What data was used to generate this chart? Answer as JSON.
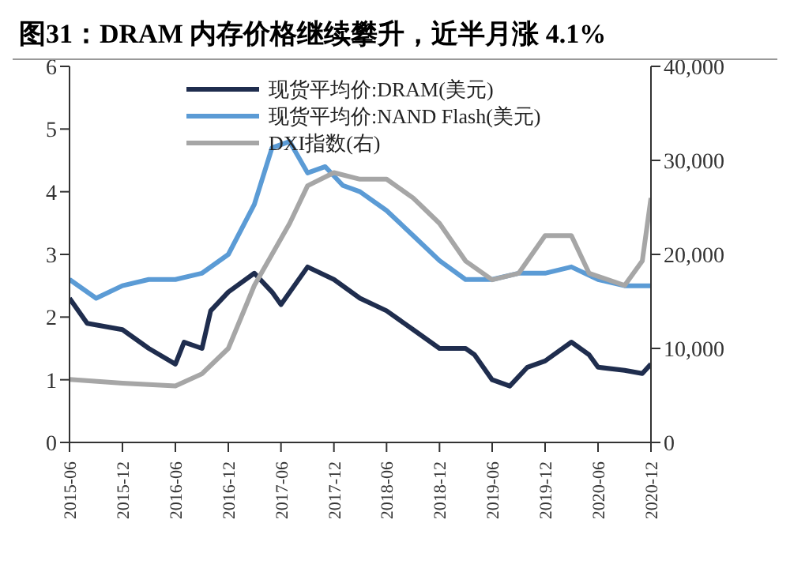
{
  "chart_data": {
    "type": "line",
    "title": "图31：DRAM 内存价格继续攀升，近半月涨 4.1%",
    "xlim": [
      "2015-06",
      "2020-12"
    ],
    "xticks": [
      "2015-06",
      "2015-12",
      "2016-06",
      "2016-12",
      "2017-06",
      "2017-12",
      "2018-06",
      "2018-12",
      "2019-06",
      "2019-12",
      "2020-06",
      "2020-12"
    ],
    "ylim": [
      0,
      6
    ],
    "yticks": [
      0,
      1,
      2,
      3,
      4,
      5,
      6
    ],
    "y2lim": [
      0,
      40000
    ],
    "y2ticks": [
      {
        "value": 0,
        "label": "0"
      },
      {
        "value": 10000,
        "label": "10,000"
      },
      {
        "value": 20000,
        "label": "20,000"
      },
      {
        "value": 30000,
        "label": "30,000"
      },
      {
        "value": 40000,
        "label": "40,000"
      }
    ],
    "legend": "top",
    "grid": false,
    "marker": "none",
    "line_style": "solid",
    "series": [
      {
        "name": "现货平均价:DRAM(美元)",
        "color": "#1f2d4e",
        "x": [
          "2015-06",
          "2015-08",
          "2015-12",
          "2016-03",
          "2016-06",
          "2016-07",
          "2016-09",
          "2016-10",
          "2016-12",
          "2017-03",
          "2017-05",
          "2017-06",
          "2017-09",
          "2017-12",
          "2018-03",
          "2018-06",
          "2018-09",
          "2018-12",
          "2019-03",
          "2019-04",
          "2019-06",
          "2019-08",
          "2019-10",
          "2019-12",
          "2020-03",
          "2020-05",
          "2020-06",
          "2020-09",
          "2020-11",
          "2020-12"
        ],
        "values": [
          2.3,
          1.9,
          1.8,
          1.5,
          1.25,
          1.6,
          1.5,
          2.1,
          2.4,
          2.7,
          2.4,
          2.2,
          2.8,
          2.6,
          2.3,
          2.1,
          1.8,
          1.5,
          1.5,
          1.4,
          1.0,
          0.9,
          1.2,
          1.3,
          1.6,
          1.4,
          1.2,
          1.15,
          1.1,
          1.25
        ]
      },
      {
        "name": "现货平均价:NAND Flash(美元)",
        "color": "#5b9bd5",
        "x": [
          "2015-06",
          "2015-09",
          "2015-12",
          "2016-03",
          "2016-06",
          "2016-09",
          "2016-12",
          "2017-03",
          "2017-05",
          "2017-07",
          "2017-09",
          "2017-11",
          "2018-01",
          "2018-03",
          "2018-06",
          "2018-09",
          "2018-12",
          "2019-03",
          "2019-06",
          "2019-09",
          "2019-12",
          "2020-03",
          "2020-06",
          "2020-09",
          "2020-12"
        ],
        "values": [
          2.6,
          2.3,
          2.5,
          2.6,
          2.6,
          2.7,
          3.0,
          3.8,
          4.7,
          4.8,
          4.3,
          4.4,
          4.1,
          4.0,
          3.7,
          3.3,
          2.9,
          2.6,
          2.6,
          2.7,
          2.7,
          2.8,
          2.6,
          2.5,
          2.5
        ]
      },
      {
        "name": "DXI指数(右)",
        "color": "#a6a6a6",
        "axis": "y2",
        "x": [
          "2015-06",
          "2015-12",
          "2016-06",
          "2016-09",
          "2016-12",
          "2017-03",
          "2017-05",
          "2017-07",
          "2017-09",
          "2017-12",
          "2018-03",
          "2018-06",
          "2018-09",
          "2018-12",
          "2019-03",
          "2019-06",
          "2019-09",
          "2019-12",
          "2020-03",
          "2020-05",
          "2020-09",
          "2020-11",
          "2020-12"
        ],
        "values": [
          6700,
          6300,
          6000,
          7300,
          10000,
          16700,
          20000,
          23300,
          27300,
          28700,
          28000,
          28000,
          26000,
          23300,
          19300,
          17300,
          18000,
          22000,
          22000,
          18000,
          16700,
          19300,
          26000
        ]
      }
    ]
  }
}
